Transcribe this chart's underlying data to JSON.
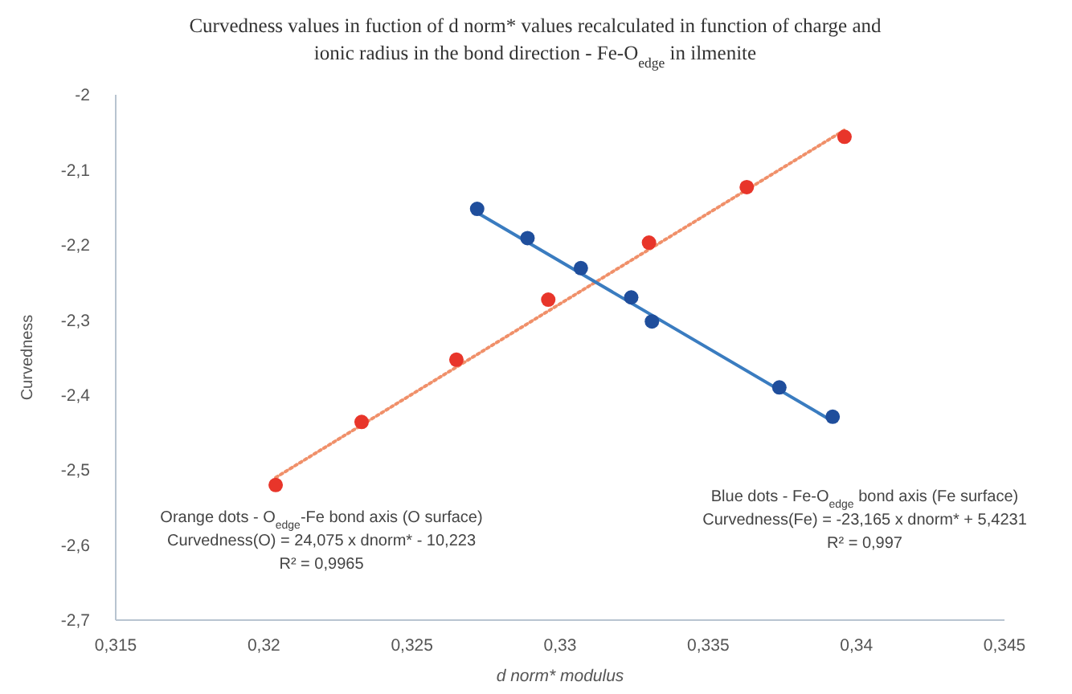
{
  "chart_data": {
    "type": "scatter",
    "title": "Curvedness values in fuction of d norm* values recalculated in function of charge and ionic radius in the bond direction - Fe-O$_{edge}$ in ilmenite",
    "xlabel": "d norm* modulus",
    "ylabel": "Curvedness",
    "xlim": [
      0.315,
      0.345
    ],
    "xticks": [
      {
        "value": 0.315,
        "label": "0,315"
      },
      {
        "value": 0.32,
        "label": "0,32"
      },
      {
        "value": 0.325,
        "label": "0,325"
      },
      {
        "value": 0.33,
        "label": "0,33"
      },
      {
        "value": 0.335,
        "label": "0,335"
      },
      {
        "value": 0.34,
        "label": "0,34"
      },
      {
        "value": 0.345,
        "label": "0,345"
      }
    ],
    "ylim": [
      -2.7,
      -2
    ],
    "yticks": [
      {
        "value": -2.7,
        "label": "-2,7"
      },
      {
        "value": -2.6,
        "label": "-2,6"
      },
      {
        "value": -2.5,
        "label": "-2,5"
      },
      {
        "value": -2.4,
        "label": "-2,4"
      },
      {
        "value": -2.3,
        "label": "-2,3"
      },
      {
        "value": -2.2,
        "label": "-2,2"
      },
      {
        "value": -2.1,
        "label": "-2,1"
      },
      -2
    ],
    "grid": false,
    "marker": "circle",
    "series": [
      {
        "type": "line",
        "marker": "none",
        "color": "#f0906a",
        "line_style": "dotted",
        "x": [
          0.3204,
          0.3396
        ],
        "values": [
          -2.51,
          -2.047
        ]
      },
      {
        "type": "line",
        "marker": "none",
        "color": "#3a7cc0",
        "line_style": "solid",
        "x": [
          0.3272,
          0.3392
        ],
        "values": [
          -2.157,
          -2.435
        ]
      },
      {
        "color": "#e8352a",
        "x": [
          0.3204,
          0.3233,
          0.3265,
          0.3296,
          0.333,
          0.3363,
          0.3396
        ],
        "values": [
          -2.52,
          -2.436,
          -2.353,
          -2.273,
          -2.197,
          -2.123,
          -2.056
        ]
      },
      {
        "color": "#1f4e9c",
        "x": [
          0.3272,
          0.3289,
          0.3307,
          0.3324,
          0.3331,
          0.3374,
          0.3392
        ],
        "values": [
          -2.152,
          -2.191,
          -2.231,
          -2.27,
          -2.302,
          -2.39,
          -2.429
        ]
      }
    ],
    "annotations": [
      "Orange dots - O$_{edge}$-Fe bond axis (O surface)",
      "Curvedness(O) = 24,075 x dnorm* - 10,223",
      "R² = 0,9965",
      "Blue dots - Fe-O$_{edge}$ bond axis (Fe surface)",
      "Curvedness(Fe) = -23,165 x dnorm* + 5,4231",
      "R² = 0,997"
    ]
  }
}
